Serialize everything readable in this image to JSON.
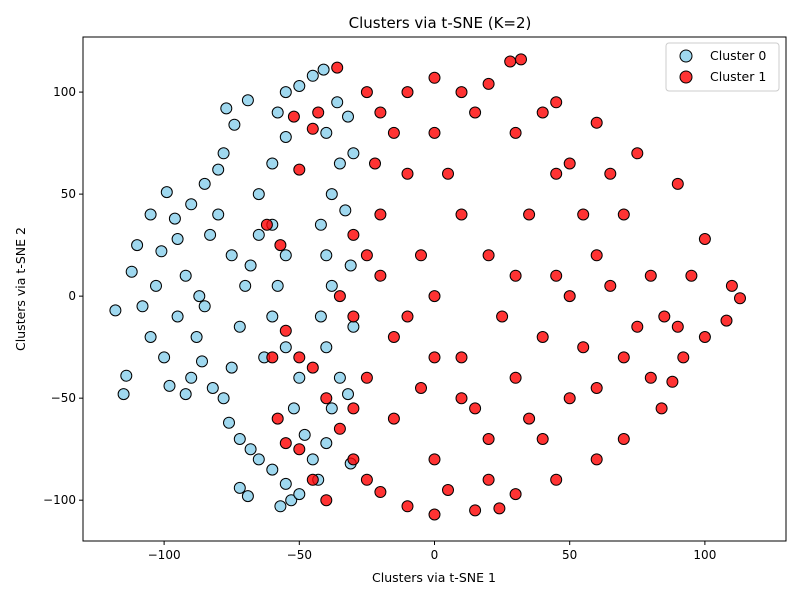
{
  "chart_data": {
    "type": "scatter",
    "title": "Clusters via t-SNE (K=2)",
    "xlabel": "Clusters via t-SNE  1",
    "ylabel": "Clusters via t-SNE  2",
    "xlim": [
      -130,
      130
    ],
    "ylim": [
      -120,
      127
    ],
    "xticks": [
      -100,
      -50,
      0,
      50,
      100
    ],
    "xtick_labels": [
      "−100",
      "−50",
      "0",
      "50",
      "100"
    ],
    "yticks": [
      -100,
      -50,
      0,
      50,
      100
    ],
    "ytick_labels": [
      "−100",
      "−50",
      "0",
      "50",
      "100"
    ],
    "grid": false,
    "legend_position": "top-right",
    "series": [
      {
        "name": "Cluster 0",
        "color": "#87ceeb",
        "edge_color": "#000000",
        "points": [
          [
            -118,
            -7
          ],
          [
            -114,
            -39
          ],
          [
            -115,
            -48
          ],
          [
            -99,
            51
          ],
          [
            -105,
            40
          ],
          [
            -110,
            25
          ],
          [
            -112,
            12
          ],
          [
            -108,
            -5
          ],
          [
            -105,
            -20
          ],
          [
            -100,
            -30
          ],
          [
            -98,
            -44
          ],
          [
            -92,
            -48
          ],
          [
            -90,
            -40
          ],
          [
            -88,
            -20
          ],
          [
            -85,
            -5
          ],
          [
            -92,
            10
          ],
          [
            -95,
            28
          ],
          [
            -90,
            45
          ],
          [
            -85,
            55
          ],
          [
            -80,
            62
          ],
          [
            -78,
            70
          ],
          [
            -77,
            92
          ],
          [
            -74,
            84
          ],
          [
            -69,
            96
          ],
          [
            -80,
            40
          ],
          [
            -75,
            20
          ],
          [
            -70,
            5
          ],
          [
            -72,
            -15
          ],
          [
            -75,
            -35
          ],
          [
            -78,
            -50
          ],
          [
            -76,
            -62
          ],
          [
            -72,
            -70
          ],
          [
            -68,
            -75
          ],
          [
            -65,
            -80
          ],
          [
            -60,
            -85
          ],
          [
            -55,
            -92
          ],
          [
            -53,
            -100
          ],
          [
            -57,
            -103
          ],
          [
            -50,
            -97
          ],
          [
            -72,
            -94
          ],
          [
            -69,
            -98
          ],
          [
            -65,
            50
          ],
          [
            -60,
            65
          ],
          [
            -55,
            78
          ],
          [
            -58,
            90
          ],
          [
            -55,
            100
          ],
          [
            -50,
            103
          ],
          [
            -45,
            108
          ],
          [
            -41,
            111
          ],
          [
            -60,
            35
          ],
          [
            -55,
            20
          ],
          [
            -58,
            5
          ],
          [
            -60,
            -10
          ],
          [
            -55,
            -25
          ],
          [
            -50,
            -40
          ],
          [
            -52,
            -55
          ],
          [
            -48,
            -68
          ],
          [
            -45,
            -80
          ],
          [
            -43,
            -90
          ],
          [
            -40,
            -72
          ],
          [
            -38,
            -55
          ],
          [
            -35,
            -40
          ],
          [
            -40,
            -25
          ],
          [
            -42,
            -10
          ],
          [
            -38,
            5
          ],
          [
            -40,
            20
          ],
          [
            -42,
            35
          ],
          [
            -38,
            50
          ],
          [
            -35,
            65
          ],
          [
            -40,
            80
          ],
          [
            -36,
            95
          ],
          [
            -32,
            88
          ],
          [
            -30,
            70
          ],
          [
            -33,
            42
          ],
          [
            -31,
            15
          ],
          [
            -30,
            -15
          ],
          [
            -32,
            -48
          ],
          [
            -31,
            -82
          ],
          [
            -65,
            30
          ],
          [
            -68,
            15
          ],
          [
            -63,
            -30
          ],
          [
            -83,
            30
          ],
          [
            -87,
            0
          ],
          [
            -95,
            -10
          ],
          [
            -103,
            5
          ],
          [
            -101,
            22
          ],
          [
            -96,
            38
          ],
          [
            -86,
            -32
          ],
          [
            -82,
            -45
          ]
        ]
      },
      {
        "name": "Cluster 1",
        "color": "#ff0000",
        "edge_color": "#000000",
        "points": [
          [
            -36,
            112
          ],
          [
            -25,
            100
          ],
          [
            -20,
            90
          ],
          [
            -15,
            80
          ],
          [
            -10,
            100
          ],
          [
            0,
            107
          ],
          [
            10,
            100
          ],
          [
            20,
            104
          ],
          [
            28,
            115
          ],
          [
            32,
            116
          ],
          [
            45,
            95
          ],
          [
            60,
            85
          ],
          [
            75,
            70
          ],
          [
            90,
            55
          ],
          [
            100,
            28
          ],
          [
            110,
            5
          ],
          [
            113,
            -1
          ],
          [
            108,
            -12
          ],
          [
            100,
            -20
          ],
          [
            92,
            -30
          ],
          [
            88,
            -42
          ],
          [
            84,
            -55
          ],
          [
            70,
            -70
          ],
          [
            60,
            -80
          ],
          [
            45,
            -90
          ],
          [
            30,
            -97
          ],
          [
            24,
            -104
          ],
          [
            15,
            -105
          ],
          [
            0,
            -107
          ],
          [
            -10,
            -103
          ],
          [
            -20,
            -96
          ],
          [
            -25,
            -90
          ],
          [
            -30,
            -80
          ],
          [
            -35,
            -65
          ],
          [
            -40,
            -50
          ],
          [
            -45,
            -35
          ],
          [
            -50,
            -30
          ],
          [
            -55,
            -17
          ],
          [
            -60,
            -30
          ],
          [
            -58,
            -60
          ],
          [
            -55,
            -72
          ],
          [
            -50,
            -75
          ],
          [
            -40,
            -100
          ],
          [
            -45,
            -90
          ],
          [
            -57,
            25
          ],
          [
            -62,
            35
          ],
          [
            -50,
            62
          ],
          [
            -45,
            82
          ],
          [
            -43,
            90
          ],
          [
            -52,
            88
          ],
          [
            -30,
            30
          ],
          [
            -20,
            10
          ],
          [
            -10,
            -10
          ],
          [
            0,
            -30
          ],
          [
            10,
            -50
          ],
          [
            20,
            -70
          ],
          [
            30,
            -40
          ],
          [
            40,
            -20
          ],
          [
            50,
            0
          ],
          [
            60,
            20
          ],
          [
            70,
            40
          ],
          [
            80,
            10
          ],
          [
            85,
            -10
          ],
          [
            70,
            -30
          ],
          [
            50,
            -50
          ],
          [
            40,
            -70
          ],
          [
            20,
            -90
          ],
          [
            0,
            -80
          ],
          [
            -15,
            -60
          ],
          [
            -25,
            -40
          ],
          [
            -30,
            -10
          ],
          [
            -25,
            20
          ],
          [
            -20,
            40
          ],
          [
            -10,
            60
          ],
          [
            0,
            80
          ],
          [
            15,
            90
          ],
          [
            30,
            80
          ],
          [
            45,
            60
          ],
          [
            55,
            40
          ],
          [
            65,
            5
          ],
          [
            75,
            -15
          ],
          [
            60,
            -45
          ],
          [
            35,
            -60
          ],
          [
            10,
            -30
          ],
          [
            0,
            0
          ],
          [
            20,
            20
          ],
          [
            35,
            40
          ],
          [
            50,
            65
          ],
          [
            10,
            40
          ],
          [
            -5,
            20
          ],
          [
            25,
            -10
          ],
          [
            45,
            10
          ],
          [
            15,
            -55
          ],
          [
            -5,
            -45
          ],
          [
            5,
            60
          ],
          [
            30,
            10
          ],
          [
            55,
            -25
          ],
          [
            80,
            -40
          ],
          [
            95,
            10
          ],
          [
            -15,
            -20
          ],
          [
            -22,
            65
          ],
          [
            65,
            60
          ],
          [
            40,
            90
          ],
          [
            5,
            -95
          ],
          [
            -30,
            -55
          ],
          [
            90,
            -15
          ],
          [
            -35,
            0
          ]
        ]
      }
    ]
  }
}
